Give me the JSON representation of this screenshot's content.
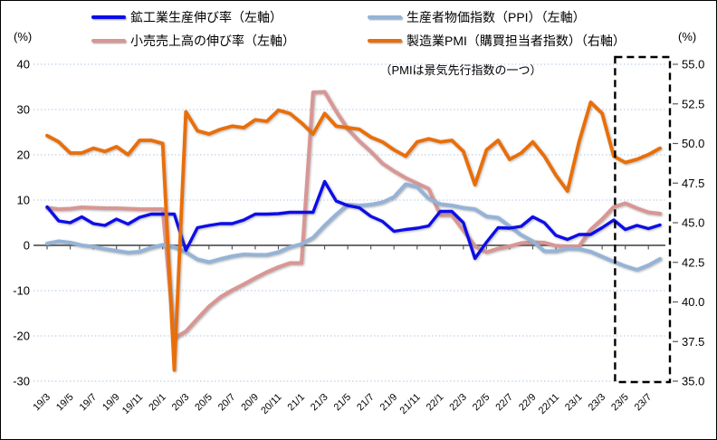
{
  "units": {
    "left_axis_unit": "(%)",
    "right_axis_unit": "(%)"
  },
  "note": "（PMIは景気先行指数の一つ）",
  "legend": [
    {
      "series": "industrial_production",
      "label": "鉱工業生産伸び率（左軸）"
    },
    {
      "series": "ppi",
      "label": "生産者物価指数（PPI）（左軸）"
    },
    {
      "series": "retail_sales",
      "label": "小売売上高の伸び率（左軸）"
    },
    {
      "series": "pmi",
      "label": "製造業PMI（購買担当者指数）（右軸）"
    }
  ],
  "chart_data": {
    "type": "line",
    "x": [
      "19/3",
      "19/4",
      "19/5",
      "19/6",
      "19/7",
      "19/8",
      "19/9",
      "19/10",
      "19/11",
      "19/12",
      "20/1",
      "20/2",
      "20/3",
      "20/4",
      "20/5",
      "20/6",
      "20/7",
      "20/8",
      "20/9",
      "20/10",
      "20/11",
      "20/12",
      "21/1",
      "21/2",
      "21/3",
      "21/4",
      "21/5",
      "21/6",
      "21/7",
      "21/8",
      "21/9",
      "21/10",
      "21/11",
      "21/12",
      "22/1",
      "22/2",
      "22/3",
      "22/4",
      "22/5",
      "22/6",
      "22/7",
      "22/8",
      "22/9",
      "22/10",
      "22/11",
      "22/12",
      "23/1",
      "23/2",
      "23/3",
      "23/4",
      "23/5",
      "23/6",
      "23/7",
      "23/8"
    ],
    "x_tick_labels": [
      "19/3",
      "19/5",
      "19/7",
      "19/9",
      "19/11",
      "20/1",
      "20/3",
      "20/5",
      "20/7",
      "20/9",
      "20/11",
      "21/1",
      "21/3",
      "21/5",
      "21/7",
      "21/9",
      "21/11",
      "22/1",
      "22/3",
      "22/5",
      "22/7",
      "22/9",
      "22/11",
      "23/1",
      "23/3",
      "23/5",
      "23/7"
    ],
    "left_axis": {
      "range": [
        -30,
        40
      ],
      "ticks": [
        40,
        30,
        20,
        10,
        0,
        -10,
        -20,
        -30
      ]
    },
    "right_axis": {
      "range": [
        35,
        55
      ],
      "tick_labels": [
        "55.0",
        "52.5",
        "50.0",
        "47.5",
        "45.0",
        "42.5",
        "40.0",
        "37.5",
        "35.0"
      ]
    },
    "grid": true,
    "legend_position": "top",
    "highlight_box": {
      "start_month": "23/4",
      "style": "black-dashed"
    },
    "series": [
      {
        "id": "retail_sales",
        "name": "小売売上高の伸び率",
        "axis": "left",
        "color": "#D99694",
        "values": [
          8.3,
          8.0,
          8.1,
          8.4,
          8.3,
          8.2,
          8.2,
          8.1,
          8.0,
          8.0,
          8.0,
          -20.5,
          -19.0,
          -16.2,
          -13.5,
          -11.4,
          -9.9,
          -8.6,
          -7.2,
          -5.9,
          -4.8,
          -3.9,
          -3.9,
          33.8,
          33.9,
          29.6,
          25.7,
          23.0,
          20.7,
          18.1,
          16.4,
          14.9,
          13.7,
          12.5,
          6.7,
          6.7,
          3.3,
          -0.2,
          -1.5,
          -0.7,
          -0.2,
          0.5,
          0.7,
          0.6,
          -0.1,
          -0.2,
          -0.2,
          3.5,
          5.8,
          8.5,
          9.3,
          8.2,
          7.3,
          7.0
        ]
      },
      {
        "id": "ppi",
        "name": "生産者物価指数（PPI）",
        "axis": "left",
        "color": "#95B3D7",
        "values": [
          0.4,
          0.9,
          0.6,
          0.0,
          -0.3,
          -0.8,
          -1.2,
          -1.6,
          -1.4,
          -0.5,
          0.1,
          -0.4,
          -1.5,
          -3.1,
          -3.7,
          -3.0,
          -2.4,
          -2.0,
          -2.1,
          -2.1,
          -1.5,
          -0.4,
          0.3,
          1.7,
          4.4,
          6.8,
          9.0,
          8.8,
          9.0,
          9.5,
          10.7,
          13.5,
          12.9,
          10.3,
          9.1,
          8.8,
          8.3,
          8.0,
          6.4,
          6.1,
          4.2,
          2.3,
          0.9,
          -1.3,
          -1.3,
          -0.7,
          -0.8,
          -1.4,
          -2.5,
          -3.6,
          -4.6,
          -5.4,
          -4.4,
          -3.0
        ]
      },
      {
        "id": "industrial_production",
        "name": "鉱工業生産伸び率",
        "axis": "left",
        "color": "#0D0DE8",
        "values": [
          8.5,
          5.4,
          5.0,
          6.3,
          4.8,
          4.4,
          5.8,
          4.7,
          6.2,
          6.9,
          6.9,
          6.9,
          -1.1,
          3.9,
          4.4,
          4.8,
          4.8,
          5.6,
          6.9,
          6.9,
          7.0,
          7.3,
          7.3,
          7.3,
          14.1,
          9.8,
          8.8,
          8.3,
          6.4,
          5.3,
          3.1,
          3.5,
          3.8,
          4.3,
          7.5,
          7.5,
          5.0,
          -2.9,
          0.7,
          3.9,
          3.8,
          4.2,
          6.3,
          5.0,
          2.2,
          1.3,
          2.4,
          2.4,
          3.9,
          5.6,
          3.5,
          4.4,
          3.7,
          4.5
        ]
      },
      {
        "id": "pmi",
        "name": "製造業PMI（購買担当者指数）",
        "axis": "right",
        "color": "#EA6E07",
        "values": [
          50.5,
          50.1,
          49.4,
          49.4,
          49.7,
          49.5,
          49.8,
          49.3,
          50.2,
          50.2,
          50.0,
          35.7,
          52.0,
          50.8,
          50.6,
          50.9,
          51.1,
          51.0,
          51.5,
          51.4,
          52.1,
          51.9,
          51.3,
          50.6,
          51.9,
          51.1,
          51.0,
          50.9,
          50.4,
          50.1,
          49.6,
          49.2,
          50.1,
          50.3,
          50.1,
          50.2,
          49.5,
          47.4,
          49.6,
          50.2,
          49.0,
          49.4,
          50.1,
          49.2,
          48.0,
          47.0,
          50.1,
          52.6,
          51.9,
          49.2,
          48.8,
          49.0,
          49.3,
          49.7
        ]
      }
    ]
  }
}
